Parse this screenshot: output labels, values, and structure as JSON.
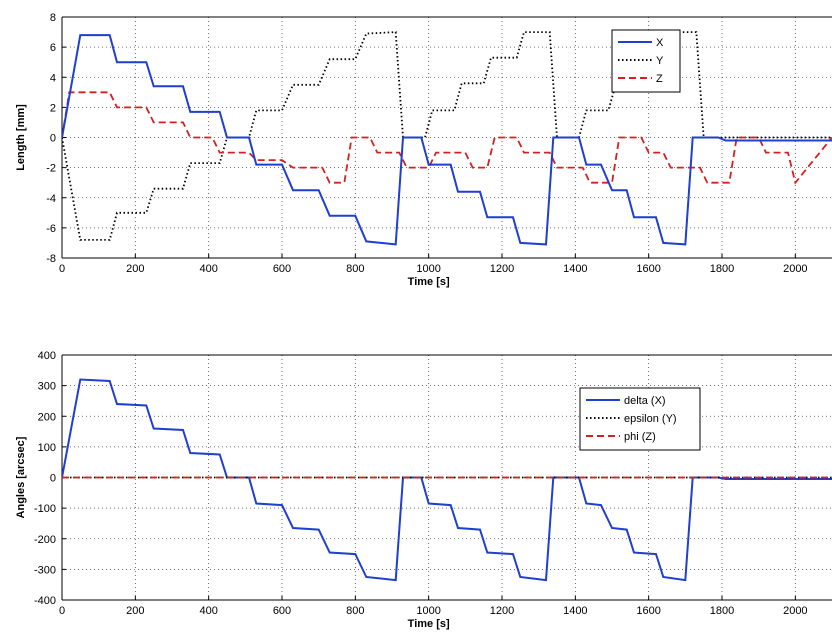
{
  "chart_data": [
    {
      "type": "line",
      "xlabel": "Time [s]",
      "ylabel": "Length [mm]",
      "xlim": [
        0,
        2100
      ],
      "ylim": [
        -8,
        8
      ],
      "xticks": [
        0,
        200,
        400,
        600,
        800,
        1000,
        1200,
        1400,
        1600,
        1800,
        2000
      ],
      "yticks": [
        -8,
        -6,
        -4,
        -2,
        0,
        2,
        4,
        6,
        8
      ],
      "grid": true,
      "legend_position": "top-right",
      "series": [
        {
          "name": "X",
          "color": "#1f3fd0",
          "style": "solid",
          "x": [
            0,
            50,
            130,
            150,
            230,
            250,
            330,
            350,
            430,
            450,
            510,
            530,
            600,
            630,
            700,
            730,
            800,
            830,
            910,
            930,
            980,
            1000,
            1060,
            1080,
            1140,
            1160,
            1230,
            1250,
            1320,
            1340,
            1410,
            1430,
            1470,
            1500,
            1540,
            1560,
            1620,
            1640,
            1700,
            1720,
            1790,
            1810,
            1870,
            1890,
            1960,
            1990,
            2030,
            2100
          ],
          "y": [
            0,
            6.8,
            6.8,
            5,
            5,
            3.4,
            3.4,
            1.7,
            1.7,
            0,
            0,
            -1.8,
            -1.8,
            -3.5,
            -3.5,
            -5.2,
            -5.2,
            -6.9,
            -7.1,
            0,
            0,
            -1.8,
            -1.8,
            -3.6,
            -3.6,
            -5.3,
            -5.3,
            -7,
            -7.1,
            0,
            0,
            -1.8,
            -1.8,
            -3.5,
            -3.5,
            -5.3,
            -5.3,
            -7,
            -7.1,
            0,
            0,
            -0.2,
            -0.2,
            -0.2,
            -0.2,
            -0.2,
            -0.2,
            -0.2
          ]
        },
        {
          "name": "Y",
          "color": "#000000",
          "style": "dotted",
          "x": [
            0,
            50,
            130,
            150,
            230,
            250,
            330,
            350,
            430,
            450,
            510,
            530,
            600,
            630,
            700,
            730,
            800,
            830,
            910,
            930,
            990,
            1010,
            1070,
            1090,
            1150,
            1170,
            1240,
            1260,
            1330,
            1350,
            1410,
            1430,
            1490,
            1510,
            1560,
            1580,
            1640,
            1660,
            1730,
            1750,
            1810,
            1830,
            1890,
            1910,
            1960,
            1990,
            2100
          ],
          "y": [
            0,
            -6.8,
            -6.8,
            -5,
            -5,
            -3.4,
            -3.4,
            -1.7,
            -1.7,
            0,
            0,
            1.8,
            1.8,
            3.5,
            3.5,
            5.2,
            5.2,
            6.9,
            7,
            0,
            0,
            1.8,
            1.8,
            3.6,
            3.6,
            5.3,
            5.3,
            7,
            7,
            0,
            0,
            1.8,
            1.8,
            3.5,
            3.5,
            5.3,
            5.3,
            7,
            7,
            0,
            0,
            0,
            0,
            0,
            0,
            0,
            0
          ]
        },
        {
          "name": "Z",
          "color": "#d42020",
          "style": "dashed",
          "x": [
            0,
            20,
            130,
            150,
            230,
            250,
            330,
            350,
            410,
            430,
            510,
            530,
            600,
            630,
            710,
            730,
            770,
            790,
            840,
            860,
            920,
            940,
            1000,
            1020,
            1100,
            1120,
            1160,
            1180,
            1240,
            1260,
            1330,
            1350,
            1420,
            1440,
            1500,
            1520,
            1580,
            1600,
            1640,
            1660,
            1740,
            1760,
            1820,
            1840,
            1900,
            1920,
            1980,
            2000,
            2100
          ],
          "y": [
            0,
            3,
            3,
            2,
            2,
            1,
            1,
            0,
            0,
            -1,
            -1,
            -1.5,
            -1.5,
            -2,
            -2,
            -3,
            -3,
            0,
            0,
            -1,
            -1,
            -2,
            -2,
            -1,
            -1,
            -2,
            -2,
            0,
            0,
            -1,
            -1,
            -2,
            -2,
            -3,
            -3,
            0,
            0,
            -1,
            -1,
            -2,
            -2,
            -3,
            -3,
            0,
            0,
            -1,
            -1,
            -3,
            0
          ]
        }
      ]
    },
    {
      "type": "line",
      "xlabel": "Time [s]",
      "ylabel": "Angles [arcsec]",
      "xlim": [
        0,
        2100
      ],
      "ylim": [
        -400,
        400
      ],
      "xticks": [
        0,
        200,
        400,
        600,
        800,
        1000,
        1200,
        1400,
        1600,
        1800,
        2000
      ],
      "yticks": [
        -400,
        -300,
        -200,
        -100,
        0,
        100,
        200,
        300,
        400
      ],
      "grid": true,
      "legend_position": "right",
      "series": [
        {
          "name": "delta (X)",
          "color": "#1f3fd0",
          "style": "solid",
          "x": [
            0,
            50,
            130,
            150,
            230,
            250,
            330,
            350,
            430,
            450,
            510,
            530,
            600,
            630,
            700,
            730,
            800,
            830,
            910,
            930,
            980,
            1000,
            1060,
            1080,
            1140,
            1160,
            1230,
            1250,
            1320,
            1340,
            1410,
            1430,
            1470,
            1500,
            1540,
            1560,
            1620,
            1640,
            1700,
            1720,
            1790,
            1810,
            1870,
            1890,
            1960,
            1990,
            2030,
            2100
          ],
          "y": [
            0,
            320,
            315,
            240,
            235,
            160,
            155,
            80,
            75,
            0,
            0,
            -85,
            -90,
            -165,
            -170,
            -245,
            -250,
            -325,
            -335,
            0,
            0,
            -85,
            -90,
            -165,
            -170,
            -245,
            -250,
            -325,
            -335,
            0,
            0,
            -85,
            -90,
            -165,
            -170,
            -245,
            -250,
            -325,
            -335,
            0,
            0,
            -5,
            -5,
            -5,
            -5,
            -5,
            -5,
            -5
          ]
        },
        {
          "name": "epsilon (Y)",
          "color": "#000000",
          "style": "dotted",
          "x": [
            0,
            2100
          ],
          "y": [
            0,
            0
          ]
        },
        {
          "name": "phi (Z)",
          "color": "#d42020",
          "style": "dashed",
          "x": [
            0,
            2100
          ],
          "y": [
            0,
            0
          ]
        }
      ]
    }
  ]
}
